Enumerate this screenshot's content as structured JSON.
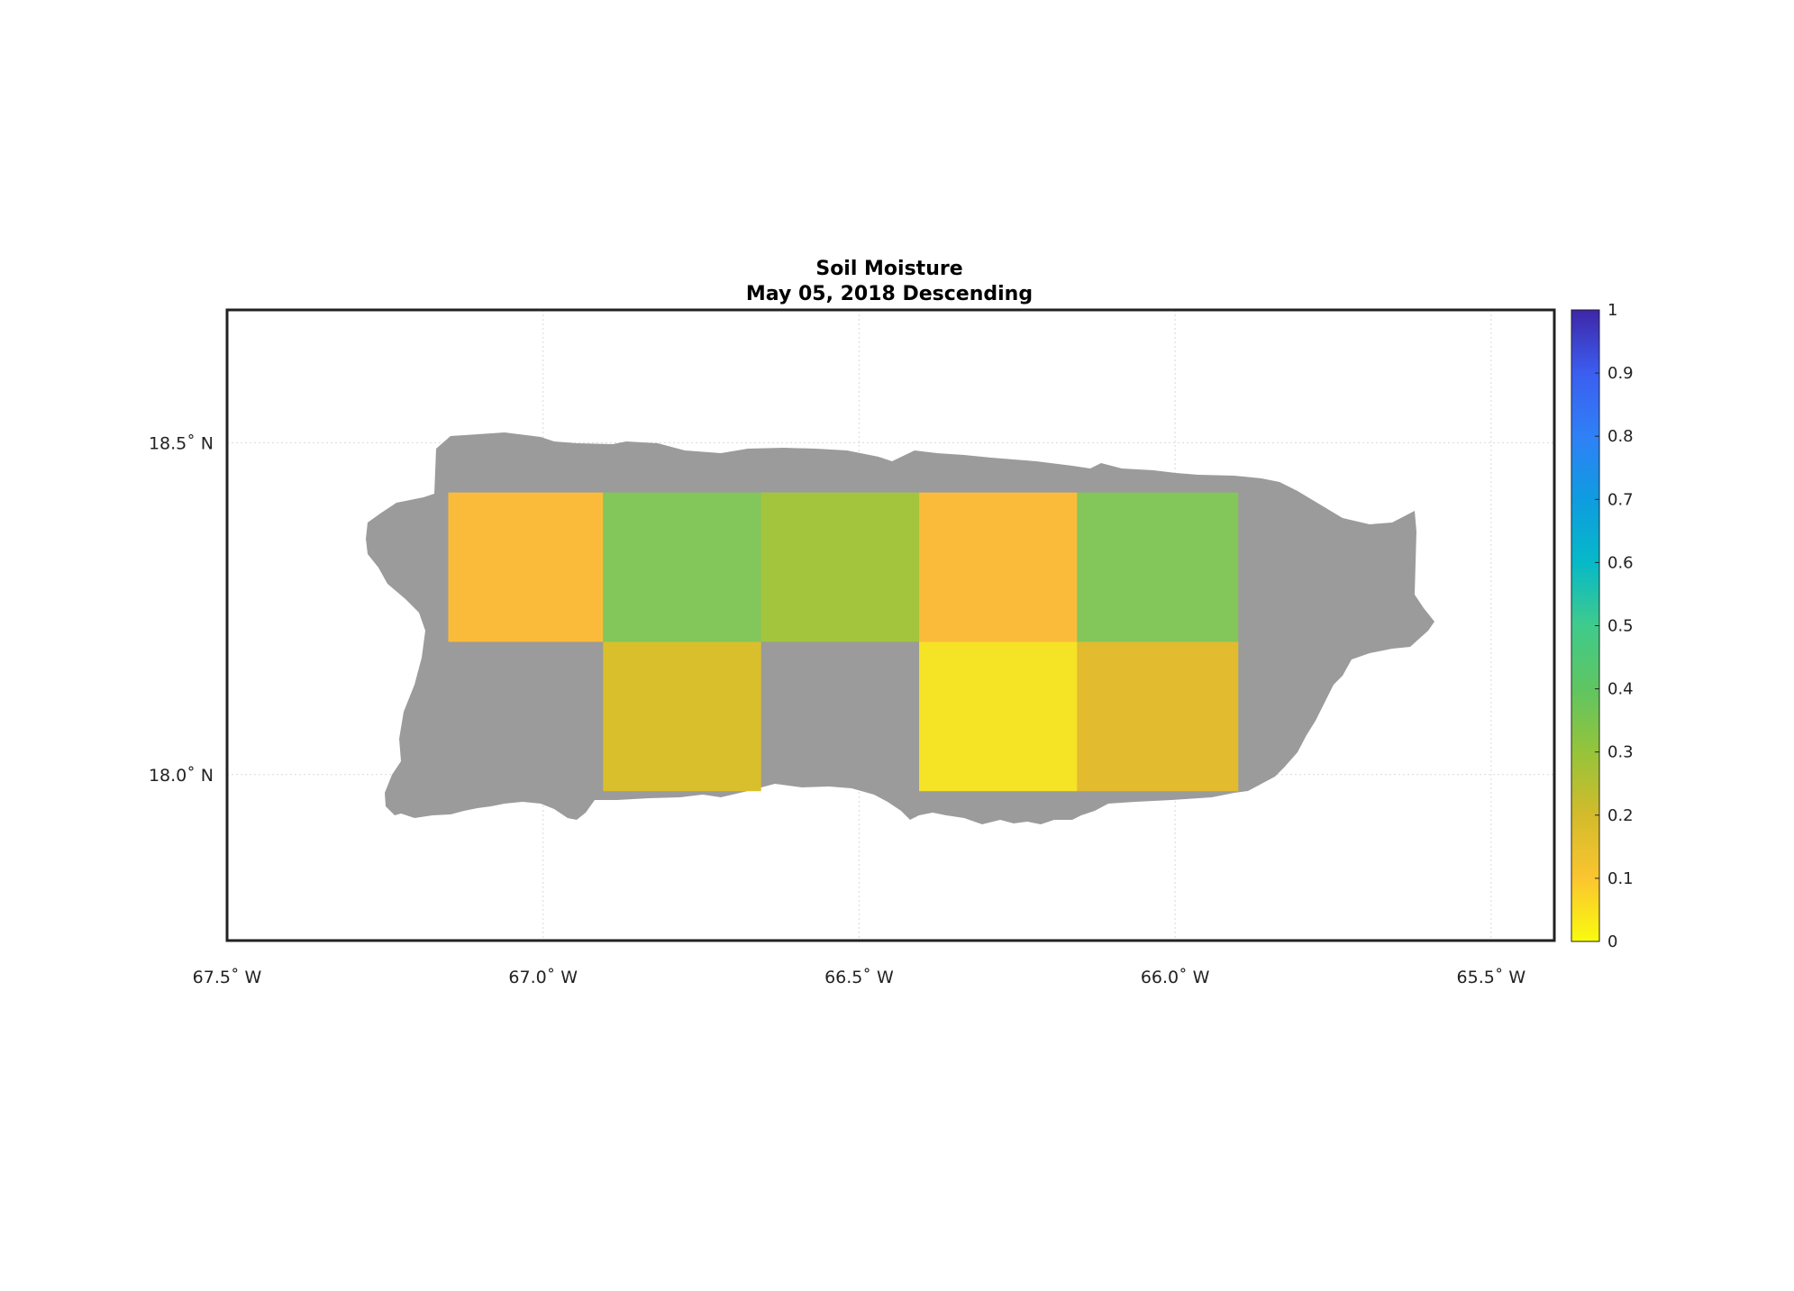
{
  "title_line1": "Soil Moisture",
  "title_line2": "May 05, 2018 Descending",
  "x_ticks": [
    {
      "value": -67.5,
      "label": "67.5˚ W"
    },
    {
      "value": -67.0,
      "label": "67.0˚ W"
    },
    {
      "value": -66.5,
      "label": "66.5˚ W"
    },
    {
      "value": -66.0,
      "label": "66.0˚ W"
    },
    {
      "value": -65.5,
      "label": "65.5˚ W"
    }
  ],
  "y_ticks": [
    {
      "value": 18.5,
      "label": "18.5˚ N"
    },
    {
      "value": 18.0,
      "label": "18.0˚ N"
    }
  ],
  "colorbar": {
    "min": 0,
    "max": 1,
    "ticks": [
      "0",
      "0.1",
      "0.2",
      "0.3",
      "0.4",
      "0.5",
      "0.6",
      "0.7",
      "0.8",
      "0.9",
      "1"
    ],
    "colors": [
      "#f9fb0e",
      "#fbc530",
      "#d3bb2b",
      "#96c43a",
      "#5fc561",
      "#3fcb8c",
      "#06b9c8",
      "#0e9ce0",
      "#2f80f7",
      "#3b5ef0",
      "#3e26a8"
    ]
  },
  "land_color": "#9b9b9b",
  "chart_data": {
    "type": "heatmap",
    "title": "Soil Moisture\nMay 05, 2018 Descending",
    "xlim": [
      -67.5,
      -65.4
    ],
    "ylim": [
      17.75,
      18.7
    ],
    "grid": true,
    "value_range": [
      0,
      1
    ],
    "cells": [
      {
        "lon_min": -67.15,
        "lon_max": -66.905,
        "lat_min": 18.2,
        "lat_max": 18.425,
        "value": 0.19,
        "color": "#fbbb3a"
      },
      {
        "lon_min": -66.905,
        "lon_max": -66.655,
        "lat_min": 18.2,
        "lat_max": 18.425,
        "value": 0.36,
        "color": "#83c65a"
      },
      {
        "lon_min": -66.655,
        "lon_max": -66.405,
        "lat_min": 18.2,
        "lat_max": 18.425,
        "value": 0.31,
        "color": "#a3c53e"
      },
      {
        "lon_min": -66.405,
        "lon_max": -66.155,
        "lat_min": 18.2,
        "lat_max": 18.425,
        "value": 0.19,
        "color": "#fbbb3a"
      },
      {
        "lon_min": -66.155,
        "lon_max": -65.9,
        "lat_min": 18.2,
        "lat_max": 18.425,
        "value": 0.36,
        "color": "#83c65a"
      },
      {
        "lon_min": -66.905,
        "lon_max": -66.655,
        "lat_min": 17.975,
        "lat_max": 18.2,
        "value": 0.24,
        "color": "#dabf2c"
      },
      {
        "lon_min": -66.405,
        "lon_max": -66.155,
        "lat_min": 17.975,
        "lat_max": 18.2,
        "value": 0.04,
        "color": "#f5e326"
      },
      {
        "lon_min": -66.155,
        "lon_max": -65.9,
        "lat_min": 17.975,
        "lat_max": 18.2,
        "value": 0.22,
        "color": "#e2bb2f"
      }
    ]
  }
}
